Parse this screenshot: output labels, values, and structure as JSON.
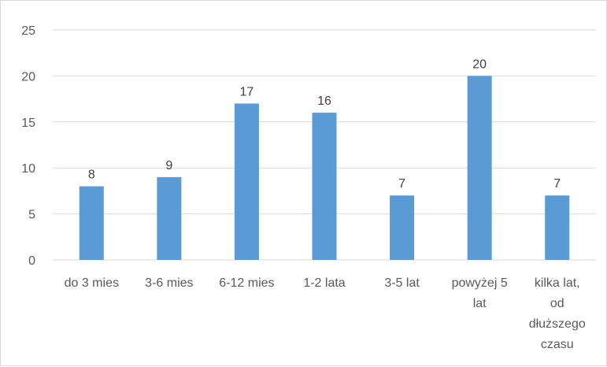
{
  "chart_data": {
    "type": "bar",
    "categories": [
      [
        "do 3 mies"
      ],
      [
        "3-6 mies"
      ],
      [
        "6-12 mies"
      ],
      [
        "1-2 lata"
      ],
      [
        "3-5 lat"
      ],
      [
        "powyżej 5",
        "lat"
      ],
      [
        "kilka lat,",
        "od",
        "dłuższego",
        "czasu"
      ]
    ],
    "values": [
      8,
      9,
      17,
      16,
      7,
      20,
      7
    ],
    "ylim": [
      0,
      25
    ],
    "yticks": [
      0,
      5,
      10,
      15,
      20,
      25
    ],
    "grid": true,
    "bar_color": "#5b9bd5",
    "title": "",
    "xlabel": "",
    "ylabel": ""
  }
}
